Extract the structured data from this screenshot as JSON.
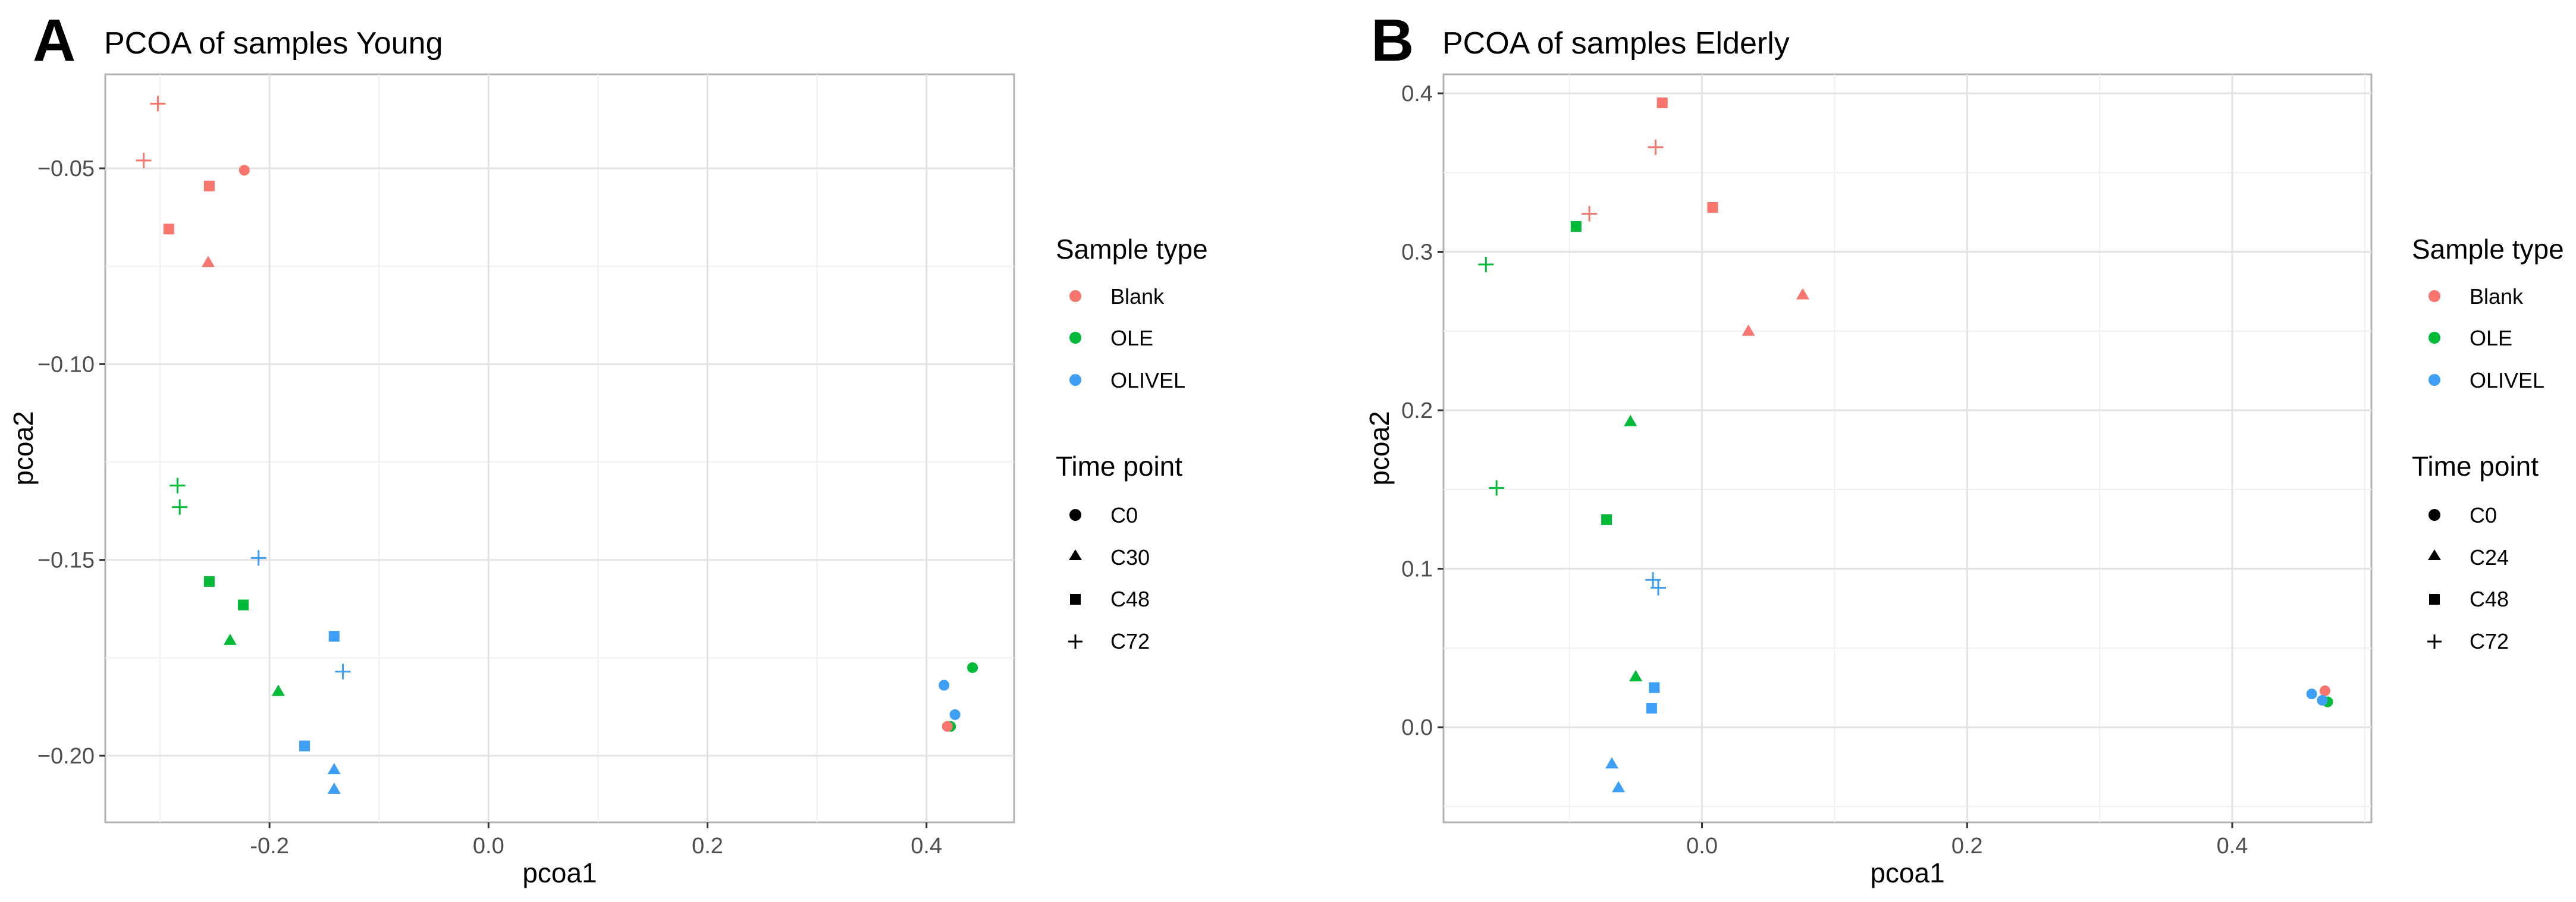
{
  "chart_data": [
    {
      "type": "scatter",
      "panel_label": "A",
      "title": "PCOA of samples Young",
      "xlabel": "pcoa1",
      "ylabel": "pcoa2",
      "xlim": [
        -0.35,
        0.48
      ],
      "ylim": [
        -0.217,
        -0.026
      ],
      "xticks": [
        -0.2,
        0.0,
        0.2,
        0.4
      ],
      "xtick_labels": [
        "-0.2",
        "0.0",
        "0.2",
        "0.4"
      ],
      "yticks": [
        -0.2,
        -0.15,
        -0.1,
        -0.05
      ],
      "ytick_labels": [
        "−0.20",
        "−0.15",
        "−0.10",
        "−0.05"
      ],
      "grid": true,
      "colors": {
        "Blank": "#f8766d",
        "OLE": "#00ba38",
        "OLIVEL": "#3d9ff5"
      },
      "legend": {
        "sample_type_title": "Sample type",
        "sample_types": [
          "Blank",
          "OLE",
          "OLIVEL"
        ],
        "time_point_title": "Time point",
        "time_points": [
          "C0",
          "C30",
          "C48",
          "C72"
        ],
        "time_point_shapes": [
          "circle",
          "triangle",
          "square",
          "plus"
        ]
      },
      "points": [
        {
          "x": -0.302,
          "y": -0.0335,
          "sample": "Blank",
          "time": "C72"
        },
        {
          "x": -0.315,
          "y": -0.048,
          "sample": "Blank",
          "time": "C72"
        },
        {
          "x": -0.223,
          "y": -0.0505,
          "sample": "Blank",
          "time": "C0"
        },
        {
          "x": -0.255,
          "y": -0.0545,
          "sample": "Blank",
          "time": "C48"
        },
        {
          "x": -0.292,
          "y": -0.0655,
          "sample": "Blank",
          "time": "C48"
        },
        {
          "x": -0.256,
          "y": -0.074,
          "sample": "Blank",
          "time": "C30"
        },
        {
          "x": -0.284,
          "y": -0.131,
          "sample": "OLE",
          "time": "C72"
        },
        {
          "x": -0.282,
          "y": -0.1365,
          "sample": "OLE",
          "time": "C72"
        },
        {
          "x": -0.255,
          "y": -0.1555,
          "sample": "OLE",
          "time": "C48"
        },
        {
          "x": -0.224,
          "y": -0.1615,
          "sample": "OLE",
          "time": "C48"
        },
        {
          "x": -0.236,
          "y": -0.1705,
          "sample": "OLE",
          "time": "C30"
        },
        {
          "x": -0.192,
          "y": -0.1835,
          "sample": "OLE",
          "time": "C30"
        },
        {
          "x": 0.442,
          "y": -0.1775,
          "sample": "OLE",
          "time": "C0"
        },
        {
          "x": 0.422,
          "y": -0.1925,
          "sample": "OLE",
          "time": "C0"
        },
        {
          "x": -0.21,
          "y": -0.1495,
          "sample": "OLIVEL",
          "time": "C72"
        },
        {
          "x": -0.141,
          "y": -0.1695,
          "sample": "OLIVEL",
          "time": "C48"
        },
        {
          "x": -0.133,
          "y": -0.1785,
          "sample": "OLIVEL",
          "time": "C72"
        },
        {
          "x": -0.168,
          "y": -0.1975,
          "sample": "OLIVEL",
          "time": "C48"
        },
        {
          "x": -0.141,
          "y": -0.2035,
          "sample": "OLIVEL",
          "time": "C30"
        },
        {
          "x": -0.141,
          "y": -0.2085,
          "sample": "OLIVEL",
          "time": "C30"
        },
        {
          "x": 0.416,
          "y": -0.182,
          "sample": "OLIVEL",
          "time": "C0"
        },
        {
          "x": 0.426,
          "y": -0.1895,
          "sample": "OLIVEL",
          "time": "C0"
        },
        {
          "x": 0.419,
          "y": -0.1925,
          "sample": "Blank",
          "time": "C0"
        }
      ]
    },
    {
      "type": "scatter",
      "panel_label": "B",
      "title": "PCOA of samples Elderly",
      "xlabel": "pcoa1",
      "ylabel": "pcoa2",
      "xlim": [
        -0.195,
        0.505
      ],
      "ylim": [
        -0.06,
        0.412
      ],
      "xticks": [
        0.0,
        0.2,
        0.4
      ],
      "xtick_labels": [
        "0.0",
        "0.2",
        "0.4"
      ],
      "yticks": [
        0.0,
        0.1,
        0.2,
        0.3,
        0.4
      ],
      "ytick_labels": [
        "0.0",
        "0.1",
        "0.2",
        "0.3",
        "0.4"
      ],
      "grid": true,
      "colors": {
        "Blank": "#f8766d",
        "OLE": "#00ba38",
        "OLIVEL": "#3d9ff5"
      },
      "legend": {
        "sample_type_title": "Sample type",
        "sample_types": [
          "Blank",
          "OLE",
          "OLIVEL"
        ],
        "time_point_title": "Time point",
        "time_points": [
          "C0",
          "C24",
          "C48",
          "C72"
        ],
        "time_point_shapes": [
          "circle",
          "triangle",
          "square",
          "plus"
        ]
      },
      "points": [
        {
          "x": -0.03,
          "y": 0.394,
          "sample": "Blank",
          "time": "C48"
        },
        {
          "x": -0.035,
          "y": 0.366,
          "sample": "Blank",
          "time": "C72"
        },
        {
          "x": 0.008,
          "y": 0.328,
          "sample": "Blank",
          "time": "C48"
        },
        {
          "x": -0.085,
          "y": 0.324,
          "sample": "Blank",
          "time": "C72"
        },
        {
          "x": 0.076,
          "y": 0.273,
          "sample": "Blank",
          "time": "C24"
        },
        {
          "x": 0.035,
          "y": 0.25,
          "sample": "Blank",
          "time": "C24"
        },
        {
          "x": 0.47,
          "y": 0.023,
          "sample": "Blank",
          "time": "C0"
        },
        {
          "x": -0.095,
          "y": 0.316,
          "sample": "OLE",
          "time": "C48"
        },
        {
          "x": -0.163,
          "y": 0.292,
          "sample": "OLE",
          "time": "C72"
        },
        {
          "x": -0.054,
          "y": 0.193,
          "sample": "OLE",
          "time": "C24"
        },
        {
          "x": -0.155,
          "y": 0.151,
          "sample": "OLE",
          "time": "C72"
        },
        {
          "x": -0.072,
          "y": 0.131,
          "sample": "OLE",
          "time": "C48"
        },
        {
          "x": -0.05,
          "y": 0.032,
          "sample": "OLE",
          "time": "C24"
        },
        {
          "x": 0.472,
          "y": 0.016,
          "sample": "OLE",
          "time": "C0"
        },
        {
          "x": -0.037,
          "y": 0.093,
          "sample": "OLIVEL",
          "time": "C72"
        },
        {
          "x": -0.033,
          "y": 0.088,
          "sample": "OLIVEL",
          "time": "C72"
        },
        {
          "x": -0.036,
          "y": 0.025,
          "sample": "OLIVEL",
          "time": "C48"
        },
        {
          "x": -0.038,
          "y": 0.012,
          "sample": "OLIVEL",
          "time": "C48"
        },
        {
          "x": -0.068,
          "y": -0.023,
          "sample": "OLIVEL",
          "time": "C24"
        },
        {
          "x": -0.063,
          "y": -0.038,
          "sample": "OLIVEL",
          "time": "C24"
        },
        {
          "x": 0.46,
          "y": 0.021,
          "sample": "OLIVEL",
          "time": "C0"
        },
        {
          "x": 0.468,
          "y": 0.017,
          "sample": "OLIVEL",
          "time": "C0"
        }
      ]
    }
  ]
}
